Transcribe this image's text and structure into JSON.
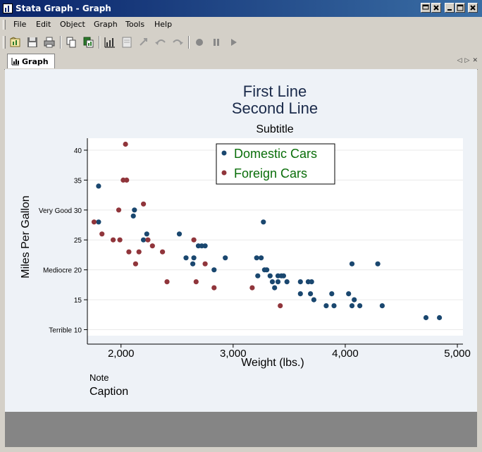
{
  "window": {
    "title": "Stata Graph - Graph"
  },
  "menu": {
    "items": [
      "File",
      "Edit",
      "Object",
      "Graph",
      "Tools",
      "Help"
    ]
  },
  "toolbar": {
    "buttons": [
      "new-graph-icon",
      "save-icon",
      "print-icon",
      "copy-icon",
      "paste-icon",
      "graph-editor-icon",
      "grid-edit-icon",
      "pointer-icon",
      "undo-icon",
      "redo-icon",
      "record-icon",
      "pause-icon",
      "play-icon"
    ]
  },
  "tab": {
    "label": "Graph"
  },
  "chart_data": {
    "type": "scatter",
    "title_line1": "First Line",
    "title_line2": "Second Line",
    "subtitle": "Subtitle",
    "xlabel": "Weight (lbs.)",
    "ylabel": "Miles Per Gallon",
    "note": "Note",
    "caption": "Caption",
    "xlim": [
      1700,
      5050
    ],
    "ylim": [
      9,
      42
    ],
    "xticks": [
      {
        "value": 2000,
        "label": "2,000"
      },
      {
        "value": 3000,
        "label": "3,000"
      },
      {
        "value": 4000,
        "label": "4,000"
      },
      {
        "value": 5000,
        "label": "5,000"
      }
    ],
    "yticks": [
      {
        "value": 10,
        "label": "Terrible 10"
      },
      {
        "value": 15,
        "label": "15"
      },
      {
        "value": 20,
        "label": "Mediocre 20"
      },
      {
        "value": 25,
        "label": "25"
      },
      {
        "value": 30,
        "label": "Very Good 30"
      },
      {
        "value": 35,
        "label": "35"
      },
      {
        "value": 40,
        "label": "40"
      }
    ],
    "grid": "horizontal",
    "legend_position": "top-center",
    "series": [
      {
        "name": "Domestic Cars",
        "color": "#1a476f",
        "legend_text_color": "#0a6e0a",
        "points": [
          [
            1800,
            34
          ],
          [
            1800,
            28
          ],
          [
            2110,
            29
          ],
          [
            2120,
            30
          ],
          [
            2200,
            25
          ],
          [
            2230,
            26
          ],
          [
            2520,
            26
          ],
          [
            2580,
            22
          ],
          [
            2640,
            21
          ],
          [
            2650,
            22
          ],
          [
            2690,
            24
          ],
          [
            2720,
            24
          ],
          [
            2750,
            24
          ],
          [
            2830,
            20
          ],
          [
            2930,
            22
          ],
          [
            3210,
            22
          ],
          [
            3220,
            19
          ],
          [
            3250,
            22
          ],
          [
            3270,
            28
          ],
          [
            3280,
            20
          ],
          [
            3300,
            20
          ],
          [
            3330,
            19
          ],
          [
            3350,
            18
          ],
          [
            3370,
            17
          ],
          [
            3400,
            18
          ],
          [
            3400,
            19
          ],
          [
            3430,
            19
          ],
          [
            3450,
            19
          ],
          [
            3480,
            18
          ],
          [
            3600,
            16
          ],
          [
            3600,
            18
          ],
          [
            3670,
            18
          ],
          [
            3690,
            16
          ],
          [
            3700,
            18
          ],
          [
            3720,
            15
          ],
          [
            3830,
            14
          ],
          [
            3880,
            16
          ],
          [
            3900,
            14
          ],
          [
            4030,
            16
          ],
          [
            4060,
            14
          ],
          [
            4060,
            21
          ],
          [
            4080,
            15
          ],
          [
            4130,
            14
          ],
          [
            4290,
            21
          ],
          [
            4330,
            14
          ],
          [
            4720,
            12
          ],
          [
            4840,
            12
          ]
        ]
      },
      {
        "name": "Foreign Cars",
        "color": "#90353b",
        "legend_text_color": "#0a6e0a",
        "points": [
          [
            1760,
            28
          ],
          [
            1830,
            26
          ],
          [
            1930,
            25
          ],
          [
            1980,
            30
          ],
          [
            1990,
            25
          ],
          [
            2020,
            35
          ],
          [
            2040,
            41
          ],
          [
            2050,
            35
          ],
          [
            2070,
            23
          ],
          [
            2130,
            21
          ],
          [
            2160,
            23
          ],
          [
            2200,
            31
          ],
          [
            2240,
            25
          ],
          [
            2280,
            24
          ],
          [
            2370,
            23
          ],
          [
            2410,
            18
          ],
          [
            2650,
            25
          ],
          [
            2670,
            18
          ],
          [
            2750,
            21
          ],
          [
            2830,
            17
          ],
          [
            3170,
            17
          ],
          [
            3420,
            14
          ]
        ]
      }
    ]
  }
}
